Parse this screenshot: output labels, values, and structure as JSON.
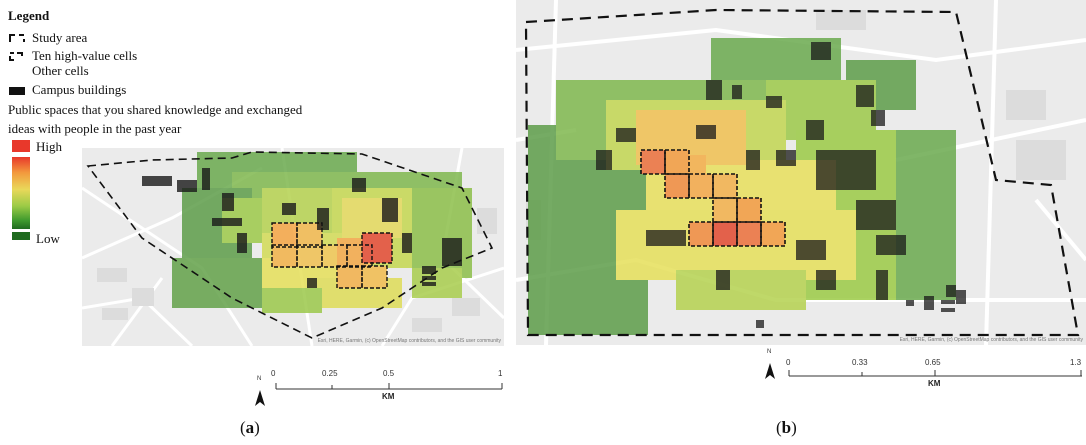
{
  "legend": {
    "title": "Legend",
    "items": [
      {
        "label": "Study area",
        "symbol": "dashed-corner"
      },
      {
        "label": "Ten high-value cells",
        "symbol": "dashed-box"
      },
      {
        "label": "Other cells",
        "symbol": "none"
      },
      {
        "label": "Campus buildings",
        "symbol": "black-fill"
      }
    ],
    "description": "Public spaces that you shared knowledge and exchanged ideas with people in the past year",
    "ramp_high": "High",
    "ramp_low": "Low",
    "colors": {
      "high": "#e8382b",
      "mid": "#e9d85a",
      "low": "#1f6b1f"
    }
  },
  "panel_a": {
    "caption_open": "(",
    "caption_letter": "a",
    "caption_close": ")",
    "attribution": "Esri, HERE, Garmin, (c) OpenStreetMap contributors, and the GIS user community",
    "scale_ticks": [
      "0",
      "0.25",
      "0.5",
      "1"
    ],
    "scale_unit": "KM",
    "north": "N"
  },
  "panel_b": {
    "caption_open": "(",
    "caption_letter": "b",
    "caption_close": ")",
    "attribution": "Esri, HERE, Garmin, (c) OpenStreetMap contributors, and the GIS user community",
    "scale_ticks": [
      "0",
      "0.33",
      "0.65",
      "1.3"
    ],
    "scale_unit": "KM",
    "north": "N"
  }
}
